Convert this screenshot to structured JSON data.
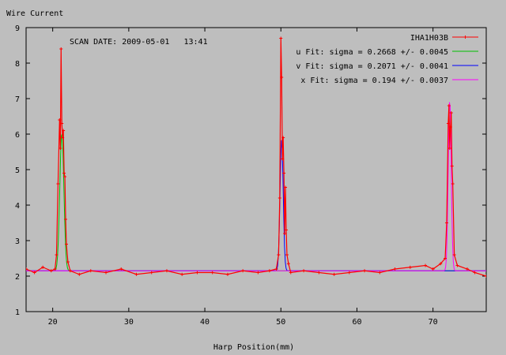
{
  "chart_data": {
    "type": "line",
    "ylabel": "Wire Current",
    "xlabel": "Harp Position(mm)",
    "annotation": "SCAN DATE: 2009-05-01   13:41",
    "xlim": [
      16.5,
      77
    ],
    "ylim": [
      1,
      9
    ],
    "xticks": [
      20,
      30,
      40,
      50,
      60,
      70
    ],
    "yticks": [
      1,
      2,
      3,
      4,
      5,
      6,
      7,
      8,
      9
    ],
    "grid": false,
    "legend_position": "top-right",
    "baseline": 2.15,
    "series": [
      {
        "name": "IHA1H03B",
        "color": "#ff0000",
        "style": "linespoints",
        "x": [
          16.5,
          17.6,
          18.7,
          19.8,
          20.3,
          20.5,
          20.7,
          20.9,
          21.0,
          21.1,
          21.2,
          21.3,
          21.4,
          21.5,
          21.6,
          21.7,
          21.8,
          22.0,
          22.3,
          23.5,
          25.0,
          27.0,
          29.0,
          31.0,
          33.0,
          35.0,
          37.0,
          39.0,
          41.0,
          43.0,
          45.0,
          47.0,
          48.5,
          49.4,
          49.7,
          49.85,
          50.0,
          50.1,
          50.2,
          50.3,
          50.4,
          50.5,
          50.6,
          50.7,
          50.8,
          51.0,
          51.3,
          53.0,
          55.0,
          57.0,
          59.0,
          61.0,
          63.0,
          65.0,
          67.0,
          69.0,
          70.0,
          71.0,
          71.6,
          71.8,
          72.0,
          72.1,
          72.2,
          72.3,
          72.4,
          72.5,
          72.6,
          72.8,
          73.2,
          74.5,
          75.5,
          77.0
        ],
        "y": [
          2.2,
          2.1,
          2.25,
          2.15,
          2.2,
          2.6,
          4.6,
          6.4,
          5.6,
          8.4,
          6.3,
          5.9,
          6.1,
          4.9,
          4.8,
          3.6,
          2.9,
          2.4,
          2.15,
          2.05,
          2.15,
          2.1,
          2.2,
          2.05,
          2.1,
          2.15,
          2.05,
          2.1,
          2.1,
          2.05,
          2.15,
          2.1,
          2.15,
          2.2,
          2.6,
          4.2,
          8.7,
          7.6,
          5.3,
          5.9,
          4.9,
          3.2,
          4.5,
          3.3,
          2.6,
          2.35,
          2.1,
          2.15,
          2.1,
          2.05,
          2.1,
          2.15,
          2.1,
          2.2,
          2.25,
          2.3,
          2.2,
          2.35,
          2.5,
          3.5,
          6.3,
          6.8,
          5.6,
          6.2,
          6.6,
          5.1,
          4.6,
          2.6,
          2.3,
          2.2,
          2.1,
          2.0
        ]
      },
      {
        "name": "u  Fit: sigma = 0.2668 +/- 0.0045",
        "color": "#00c000",
        "fit": {
          "mean": 21.2,
          "sigma": 0.2668,
          "amplitude": 3.9
        }
      },
      {
        "name": "v  Fit: sigma = 0.2071 +/- 0.0041",
        "color": "#0000ff",
        "fit": {
          "mean": 50.1,
          "sigma": 0.2071,
          "amplitude": 3.7
        }
      },
      {
        "name": "x  Fit: sigma = 0.194 +/- 0.0037",
        "color": "#ff00ff",
        "fit": {
          "mean": 72.2,
          "sigma": 0.194,
          "amplitude": 4.85
        }
      }
    ]
  }
}
